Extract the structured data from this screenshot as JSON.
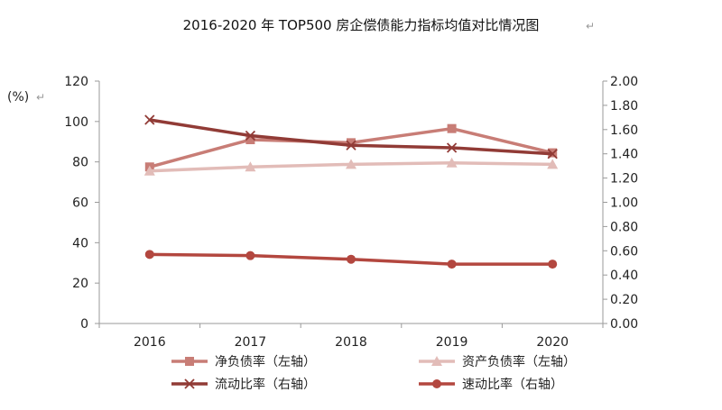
{
  "page": {
    "return_mark": "↵"
  },
  "chart_data": {
    "type": "line",
    "title": "2016-2020 年 TOP500 房企偿债能力指标均值对比情况图",
    "ylabel_left": "(%)",
    "categories": [
      "2016",
      "2017",
      "2018",
      "2019",
      "2020"
    ],
    "y_left": {
      "lim": [
        0,
        120
      ],
      "ticks": [
        "0",
        "20",
        "40",
        "60",
        "80",
        "100",
        "120"
      ]
    },
    "y_right": {
      "lim": [
        0,
        2.0
      ],
      "ticks": [
        "0.00",
        "0.20",
        "0.40",
        "0.60",
        "0.80",
        "1.00",
        "1.20",
        "1.40",
        "1.60",
        "1.80",
        "2.00"
      ]
    },
    "grid": false,
    "legend_position": "bottom",
    "series": [
      {
        "name": "净负债率（左轴）",
        "axis": "left",
        "marker": "square",
        "color": "#c87d76",
        "values": [
          77.5,
          91.0,
          89.5,
          96.5,
          84.5
        ]
      },
      {
        "name": "资产负债率（左轴）",
        "axis": "left",
        "marker": "triangle",
        "color": "#e2bcb8",
        "values": [
          75.5,
          77.5,
          78.8,
          79.5,
          78.8
        ]
      },
      {
        "name": "流动比率（右轴）",
        "axis": "right",
        "marker": "x",
        "color": "#913b36",
        "values": [
          1.68,
          1.55,
          1.47,
          1.45,
          1.4
        ]
      },
      {
        "name": "速动比率（右轴）",
        "axis": "right",
        "marker": "circle",
        "color": "#b3473f",
        "values": [
          0.57,
          0.56,
          0.53,
          0.49,
          0.49
        ]
      }
    ]
  }
}
